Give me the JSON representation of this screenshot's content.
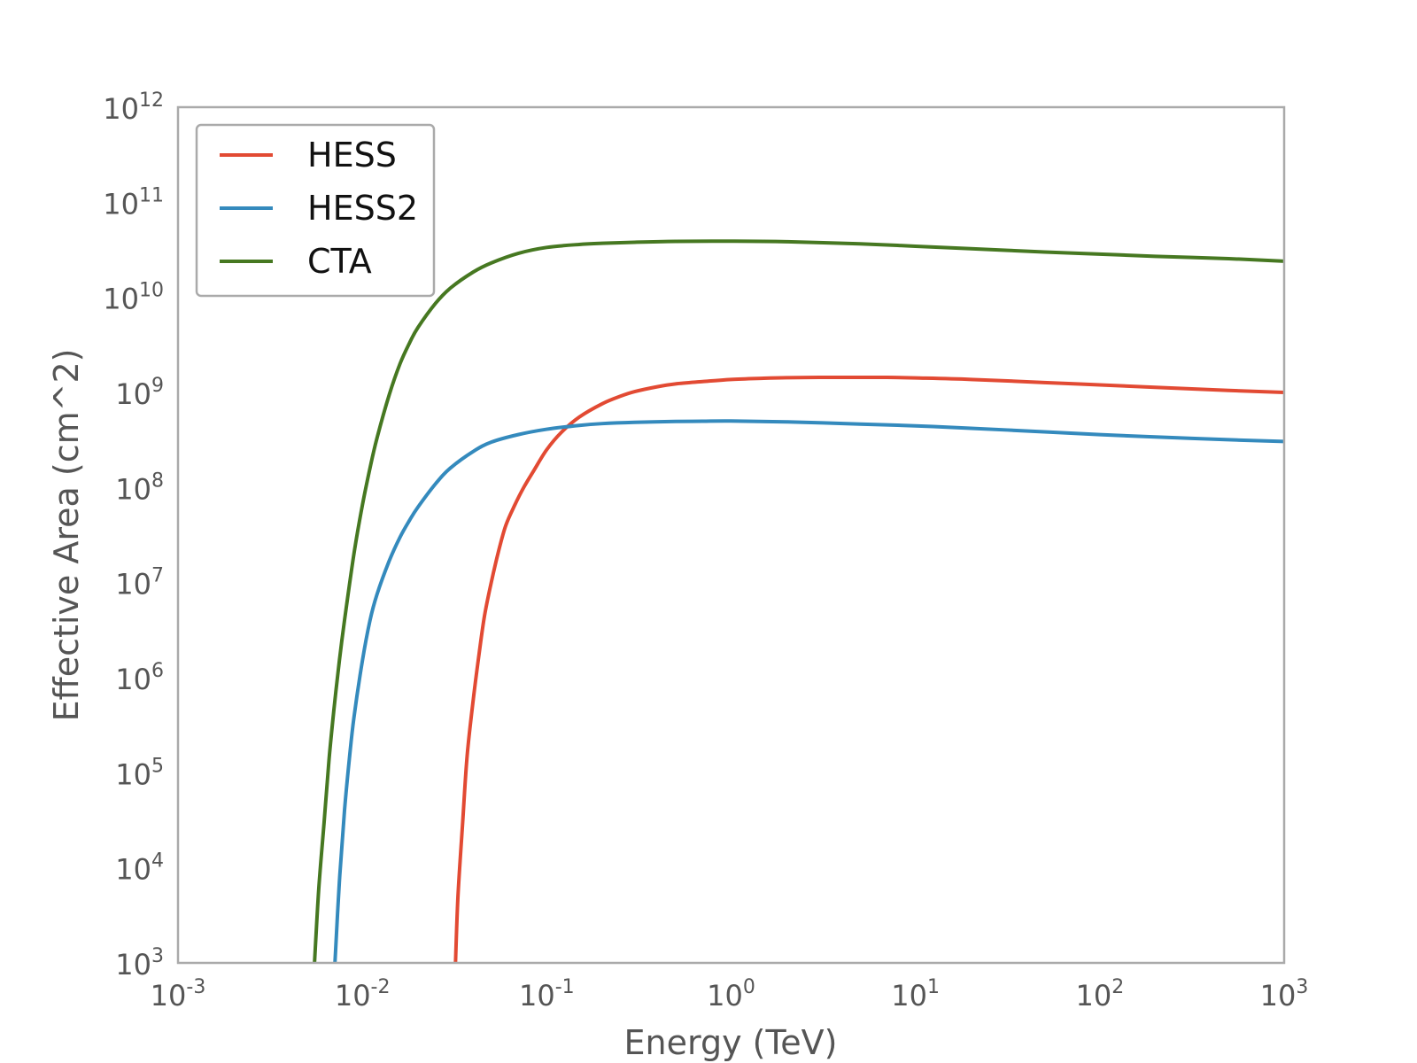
{
  "chart_data": {
    "type": "line",
    "title": "",
    "xlabel": "Energy (TeV)",
    "ylabel": "Effective Area (cm^2)",
    "xscale": "log",
    "yscale": "log",
    "xlim": [
      0.001,
      1000
    ],
    "ylim": [
      1000,
      1000000000000
    ],
    "grid": false,
    "legend": "top-left",
    "x_ticks": [
      {
        "base": "10",
        "exp": "-3",
        "value": 0.001
      },
      {
        "base": "10",
        "exp": "-2",
        "value": 0.01
      },
      {
        "base": "10",
        "exp": "-1",
        "value": 0.1
      },
      {
        "base": "10",
        "exp": "0",
        "value": 1
      },
      {
        "base": "10",
        "exp": "1",
        "value": 10
      },
      {
        "base": "10",
        "exp": "2",
        "value": 100
      },
      {
        "base": "10",
        "exp": "3",
        "value": 1000
      }
    ],
    "y_ticks": [
      {
        "base": "10",
        "exp": "3",
        "value": 1000
      },
      {
        "base": "10",
        "exp": "4",
        "value": 10000
      },
      {
        "base": "10",
        "exp": "5",
        "value": 100000
      },
      {
        "base": "10",
        "exp": "6",
        "value": 1000000
      },
      {
        "base": "10",
        "exp": "7",
        "value": 10000000
      },
      {
        "base": "10",
        "exp": "8",
        "value": 100000000
      },
      {
        "base": "10",
        "exp": "9",
        "value": 1000000000
      },
      {
        "base": "10",
        "exp": "10",
        "value": 10000000000
      },
      {
        "base": "10",
        "exp": "11",
        "value": 100000000000
      },
      {
        "base": "10",
        "exp": "12",
        "value": 1000000000000
      }
    ],
    "series": [
      {
        "name": "HESS",
        "color": "#e24a33",
        "x": [
          0.032,
          0.033,
          0.035,
          0.037,
          0.04,
          0.043,
          0.046,
          0.05,
          0.055,
          0.06,
          0.067,
          0.075,
          0.085,
          0.1,
          0.12,
          0.15,
          0.2,
          0.25,
          0.3,
          0.4,
          0.5,
          0.7,
          1,
          1.5,
          2,
          3,
          5,
          7,
          10,
          20,
          50,
          100,
          200,
          500,
          1000
        ],
        "y": [
          1000,
          5000,
          30000,
          150000,
          600000,
          1800000,
          4500000,
          10000000,
          22000000,
          40000000,
          65000000,
          100000000,
          150000000,
          250000000,
          380000000,
          550000000,
          760000000,
          910000000,
          1020000000,
          1150000000,
          1230000000,
          1300000000,
          1370000000,
          1410000000,
          1430000000,
          1440000000,
          1440000000,
          1440000000,
          1420000000,
          1370000000,
          1270000000,
          1200000000,
          1130000000,
          1050000000,
          1000000000
        ]
      },
      {
        "name": "HESS2",
        "color": "#348abd",
        "x": [
          0.0071,
          0.0075,
          0.008,
          0.0085,
          0.009,
          0.01,
          0.011,
          0.012,
          0.014,
          0.016,
          0.018,
          0.02,
          0.025,
          0.03,
          0.04,
          0.05,
          0.07,
          0.1,
          0.15,
          0.2,
          0.3,
          0.5,
          0.7,
          1,
          2,
          5,
          10,
          20,
          50,
          100,
          200,
          500,
          1000
        ],
        "y": [
          1000,
          7000,
          40000,
          140000,
          380000,
          1500000,
          4000000,
          7500000,
          17000000,
          30000000,
          45000000,
          62000000,
          110000000,
          160000000,
          240000000,
          300000000,
          360000000,
          410000000,
          450000000,
          470000000,
          485000000,
          495000000,
          498000000,
          500000000,
          490000000,
          465000000,
          445000000,
          420000000,
          385000000,
          360000000,
          340000000,
          318000000,
          305000000
        ]
      },
      {
        "name": "CTA",
        "color": "#467821",
        "x": [
          0.0055,
          0.0058,
          0.0062,
          0.0066,
          0.007,
          0.0075,
          0.008,
          0.009,
          0.01,
          0.011,
          0.012,
          0.014,
          0.016,
          0.018,
          0.02,
          0.025,
          0.03,
          0.04,
          0.05,
          0.07,
          0.1,
          0.15,
          0.2,
          0.3,
          0.5,
          1,
          2,
          5,
          10,
          20,
          50,
          100,
          200,
          500,
          1000
        ],
        "y": [
          1000,
          6000,
          30000,
          140000,
          450000,
          1500000,
          4000000,
          20000000,
          65000000,
          160000000,
          330000000,
          950000000,
          2000000000,
          3300000000,
          4800000000,
          8700000000,
          12500000000,
          18500000000,
          23000000000,
          29000000000,
          33500000000,
          36000000000,
          37000000000,
          38000000000,
          38800000000,
          39000000000,
          38500000000,
          36500000000,
          34500000000,
          32500000000,
          30000000000,
          28500000000,
          27000000000,
          25500000000,
          24000000000
        ]
      }
    ]
  }
}
